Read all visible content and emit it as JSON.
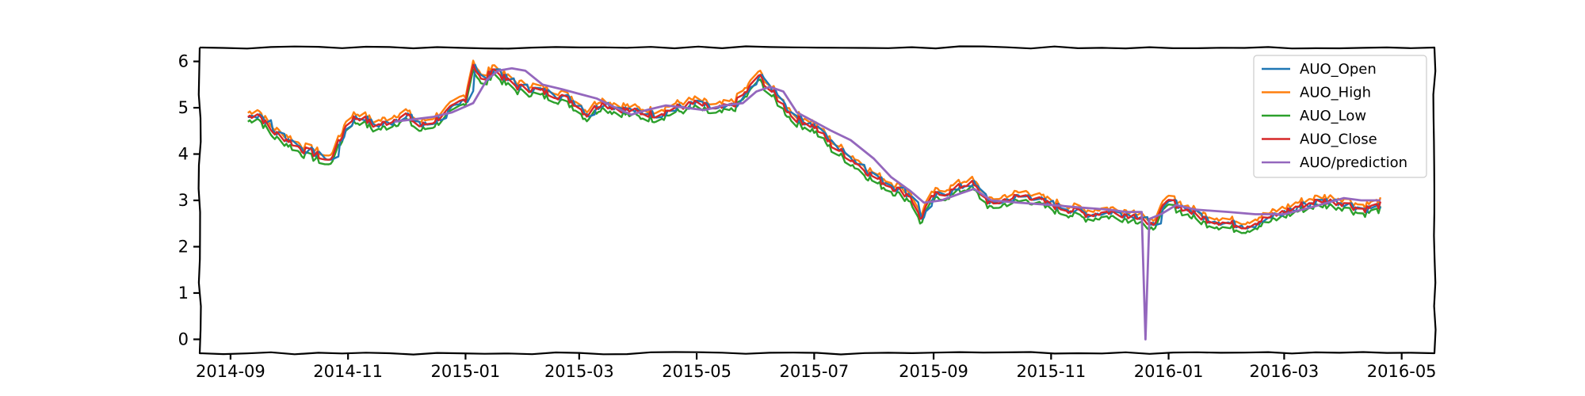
{
  "chart_data": {
    "type": "line",
    "title": "",
    "xlabel": "",
    "ylabel": "",
    "style": "xkcd",
    "legend_position": "top-right",
    "x_tick_labels": [
      "2014-09",
      "2014-11",
      "2015-01",
      "2015-03",
      "2015-05",
      "2015-07",
      "2015-09",
      "2015-11",
      "2016-01",
      "2016-03",
      "2016-05"
    ],
    "y_ticks": [
      0,
      1,
      2,
      3,
      4,
      5,
      6
    ],
    "xlim": [
      "2014-08-16",
      "2016-05-18"
    ],
    "ylim": [
      -0.3,
      6.3
    ],
    "series_names": [
      "AUO_Open",
      "AUO_High",
      "AUO_Low",
      "AUO_Close",
      "AUO/prediction"
    ],
    "colors": {
      "AUO_Open": "#1f77b4",
      "AUO_High": "#ff7f0e",
      "AUO_Low": "#2ca02c",
      "AUO_Close": "#d62728",
      "AUO/prediction": "#9467bd"
    },
    "close_series": {
      "dates": [
        "2014-09-10",
        "2014-09-15",
        "2014-09-22",
        "2014-10-01",
        "2014-10-08",
        "2014-10-15",
        "2014-10-22",
        "2014-10-28",
        "2014-11-01",
        "2014-11-08",
        "2014-11-15",
        "2014-11-22",
        "2014-12-01",
        "2014-12-08",
        "2014-12-15",
        "2014-12-22",
        "2015-01-01",
        "2015-01-05",
        "2015-01-10",
        "2015-01-15",
        "2015-01-22",
        "2015-01-28",
        "2015-02-05",
        "2015-02-15",
        "2015-02-25",
        "2015-03-05",
        "2015-03-12",
        "2015-03-20",
        "2015-04-01",
        "2015-04-10",
        "2015-04-20",
        "2015-05-01",
        "2015-05-10",
        "2015-05-20",
        "2015-05-28",
        "2015-06-02",
        "2015-06-10",
        "2015-06-20",
        "2015-07-01",
        "2015-07-10",
        "2015-07-20",
        "2015-08-01",
        "2015-08-10",
        "2015-08-20",
        "2015-08-25",
        "2015-09-01",
        "2015-09-10",
        "2015-09-20",
        "2015-10-01",
        "2015-10-10",
        "2015-10-20",
        "2015-11-01",
        "2015-11-10",
        "2015-11-20",
        "2015-12-01",
        "2015-12-10",
        "2015-12-18",
        "2015-12-22",
        "2016-01-01",
        "2016-01-10",
        "2016-01-20",
        "2016-02-01",
        "2016-02-10",
        "2016-02-20",
        "2016-03-01",
        "2016-03-10",
        "2016-03-20",
        "2016-04-01",
        "2016-04-10",
        "2016-04-20"
      ],
      "values": [
        4.8,
        4.9,
        4.5,
        4.3,
        4.1,
        4.0,
        3.85,
        4.3,
        4.75,
        4.8,
        4.6,
        4.7,
        4.85,
        4.6,
        4.7,
        4.9,
        5.2,
        5.95,
        5.5,
        5.85,
        5.6,
        5.45,
        5.4,
        5.3,
        5.15,
        4.85,
        5.1,
        5.0,
        4.9,
        4.85,
        5.0,
        5.1,
        4.95,
        5.05,
        5.4,
        5.7,
        5.3,
        4.8,
        4.6,
        4.2,
        3.9,
        3.5,
        3.3,
        3.1,
        2.6,
        3.1,
        3.2,
        3.4,
        2.9,
        3.05,
        3.1,
        2.9,
        2.8,
        2.7,
        2.75,
        2.7,
        2.65,
        2.4,
        3.0,
        2.8,
        2.6,
        2.5,
        2.45,
        2.6,
        2.75,
        2.9,
        3.0,
        2.95,
        2.8,
        2.9
      ]
    },
    "prediction_series": {
      "dates": [
        "2014-11-25",
        "2014-12-05",
        "2014-12-15",
        "2014-12-25",
        "2015-01-05",
        "2015-01-12",
        "2015-01-18",
        "2015-01-25",
        "2015-02-01",
        "2015-02-10",
        "2015-02-20",
        "2015-03-01",
        "2015-03-10",
        "2015-03-20",
        "2015-03-28",
        "2015-04-05",
        "2015-04-15",
        "2015-04-25",
        "2015-05-05",
        "2015-05-15",
        "2015-05-25",
        "2015-06-01",
        "2015-06-08",
        "2015-06-15",
        "2015-06-22",
        "2015-07-01",
        "2015-07-10",
        "2015-07-20",
        "2015-08-01",
        "2015-08-10",
        "2015-08-20",
        "2015-08-27",
        "2015-09-05",
        "2015-09-15",
        "2015-09-22",
        "2015-10-01",
        "2015-10-15",
        "2015-11-01",
        "2015-11-15",
        "2015-12-01",
        "2015-12-10",
        "2015-12-18",
        "2015-12-20",
        "2015-12-22",
        "2015-12-28",
        "2016-01-05",
        "2016-01-15",
        "2016-02-01",
        "2016-02-15",
        "2016-03-01",
        "2016-03-15",
        "2016-04-01",
        "2016-04-10",
        "2016-04-20"
      ],
      "values": [
        4.7,
        4.75,
        4.8,
        4.9,
        5.1,
        5.6,
        5.8,
        5.85,
        5.8,
        5.5,
        5.4,
        5.3,
        5.2,
        5.0,
        4.85,
        4.95,
        5.05,
        5.0,
        4.95,
        5.05,
        5.1,
        5.35,
        5.45,
        5.35,
        4.9,
        4.7,
        4.5,
        4.3,
        3.9,
        3.5,
        3.2,
        2.95,
        3.0,
        3.15,
        3.25,
        3.0,
        2.95,
        2.9,
        2.85,
        2.8,
        2.75,
        2.75,
        0.0,
        2.6,
        2.7,
        2.9,
        2.8,
        2.75,
        2.7,
        2.7,
        2.85,
        3.05,
        3.0,
        3.0
      ]
    }
  }
}
